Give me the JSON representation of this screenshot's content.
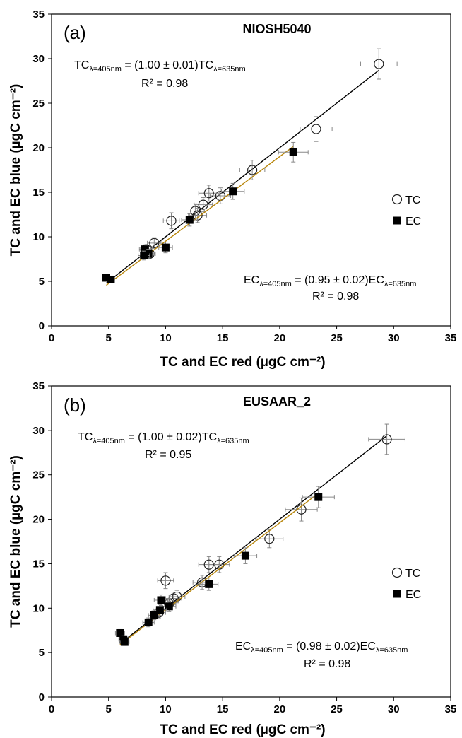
{
  "chart_data": [
    {
      "type": "scatter",
      "panel_label": "(a)",
      "title": "NIOSH5040",
      "xlabel": "TC and EC red (µgC cm⁻²)",
      "ylabel": "TC and EC blue (µgC cm⁻²)",
      "xlim": [
        0,
        35
      ],
      "ylim": [
        0,
        35
      ],
      "xticks": [
        0,
        5,
        10,
        15,
        20,
        25,
        30,
        35
      ],
      "yticks": [
        0,
        5,
        10,
        15,
        20,
        25,
        30,
        35
      ],
      "legend_placement": "right",
      "series": [
        {
          "name": "TC",
          "marker": "open-circle",
          "points": [
            {
              "x": 28.7,
              "y": 29.4,
              "xerr": 1.6,
              "yerr": 1.7
            },
            {
              "x": 23.2,
              "y": 22.1,
              "xerr": 1.4,
              "yerr": 1.4
            },
            {
              "x": 17.6,
              "y": 17.5,
              "xerr": 1.1,
              "yerr": 1.1
            },
            {
              "x": 14.8,
              "y": 14.6,
              "xerr": 0.9,
              "yerr": 0.9
            },
            {
              "x": 13.8,
              "y": 14.9,
              "xerr": 0.9,
              "yerr": 0.9
            },
            {
              "x": 13.3,
              "y": 13.6,
              "xerr": 0.8,
              "yerr": 0.8
            },
            {
              "x": 12.6,
              "y": 12.9,
              "xerr": 0.8,
              "yerr": 0.8
            },
            {
              "x": 12.8,
              "y": 12.4,
              "xerr": 0.8,
              "yerr": 0.8
            },
            {
              "x": 10.5,
              "y": 11.8,
              "xerr": 0.7,
              "yerr": 0.9
            },
            {
              "x": 9.0,
              "y": 9.3,
              "xerr": 0.6,
              "yerr": 0.6
            },
            {
              "x": 8.3,
              "y": 8.6,
              "xerr": 0.5,
              "yerr": 0.5
            },
            {
              "x": 8.6,
              "y": 8.1,
              "xerr": 0.5,
              "yerr": 0.5
            }
          ],
          "fit": {
            "equation_prefix": "TC",
            "sub1": "λ=405nm",
            "middle": " = (1.00 ± 0.01)TC",
            "sub2": "λ=635nm",
            "r2": "R² = 0.98",
            "slope": 1.0,
            "x_range": [
              4.8,
              28.7
            ],
            "color": "#000000"
          }
        },
        {
          "name": "EC",
          "marker": "filled-square",
          "points": [
            {
              "x": 21.2,
              "y": 19.5,
              "xerr": 1.3,
              "yerr": 1.1
            },
            {
              "x": 15.9,
              "y": 15.1,
              "xerr": 1.0,
              "yerr": 0.9
            },
            {
              "x": 12.1,
              "y": 11.9,
              "xerr": 0.7,
              "yerr": 0.7
            },
            {
              "x": 10.0,
              "y": 8.8,
              "xerr": 0.6,
              "yerr": 0.6
            },
            {
              "x": 8.2,
              "y": 8.6,
              "xerr": 0.5,
              "yerr": 0.5
            },
            {
              "x": 8.5,
              "y": 8.1,
              "xerr": 0.5,
              "yerr": 0.5
            },
            {
              "x": 8.1,
              "y": 7.9,
              "xerr": 0.5,
              "yerr": 0.5
            },
            {
              "x": 4.8,
              "y": 5.4,
              "xerr": 0.3,
              "yerr": 0.3
            },
            {
              "x": 5.2,
              "y": 5.2,
              "xerr": 0.3,
              "yerr": 0.3
            }
          ],
          "fit": {
            "equation_prefix": "EC",
            "sub1": "λ=405nm",
            "middle": " = (0.95 ± 0.02)EC",
            "sub2": "λ=635nm",
            "r2": "R² = 0.98",
            "slope": 0.95,
            "x_range": [
              4.8,
              21.2
            ],
            "color": "#b8860b"
          }
        }
      ]
    },
    {
      "type": "scatter",
      "panel_label": "(b)",
      "title": "EUSAAR_2",
      "xlabel": "TC and EC red (µgC cm⁻²)",
      "ylabel": "TC and EC blue (µgC cm⁻²)",
      "xlim": [
        0,
        35
      ],
      "ylim": [
        0,
        35
      ],
      "xticks": [
        0,
        5,
        10,
        15,
        20,
        25,
        30,
        35
      ],
      "yticks": [
        0,
        5,
        10,
        15,
        20,
        25,
        30,
        35
      ],
      "legend_placement": "right",
      "series": [
        {
          "name": "TC",
          "marker": "open-circle",
          "points": [
            {
              "x": 29.4,
              "y": 29.0,
              "xerr": 1.6,
              "yerr": 1.7
            },
            {
              "x": 21.9,
              "y": 21.1,
              "xerr": 1.4,
              "yerr": 1.3
            },
            {
              "x": 19.1,
              "y": 17.8,
              "xerr": 1.2,
              "yerr": 1.0
            },
            {
              "x": 14.7,
              "y": 14.9,
              "xerr": 0.9,
              "yerr": 0.9
            },
            {
              "x": 13.8,
              "y": 14.9,
              "xerr": 0.9,
              "yerr": 0.9
            },
            {
              "x": 13.2,
              "y": 12.9,
              "xerr": 0.8,
              "yerr": 0.8
            },
            {
              "x": 10.0,
              "y": 13.1,
              "xerr": 0.7,
              "yerr": 0.9
            },
            {
              "x": 10.7,
              "y": 11.1,
              "xerr": 0.7,
              "yerr": 0.7
            },
            {
              "x": 11.0,
              "y": 11.3,
              "xerr": 0.7,
              "yerr": 0.7
            },
            {
              "x": 10.3,
              "y": 10.5,
              "xerr": 0.6,
              "yerr": 0.6
            },
            {
              "x": 9.4,
              "y": 9.5,
              "xerr": 0.6,
              "yerr": 0.6
            }
          ],
          "fit": {
            "equation_prefix": "TC",
            "sub1": "λ=405nm",
            "middle": " = (1.00 ± 0.02)TC",
            "sub2": "λ=635nm",
            "r2": "R² = 0.95",
            "slope": 1.0,
            "x_range": [
              6.0,
              29.4
            ],
            "color": "#000000"
          }
        },
        {
          "name": "EC",
          "marker": "filled-square",
          "points": [
            {
              "x": 23.4,
              "y": 22.5,
              "xerr": 1.4,
              "yerr": 1.2
            },
            {
              "x": 17.0,
              "y": 15.9,
              "xerr": 1.0,
              "yerr": 0.9
            },
            {
              "x": 13.8,
              "y": 12.7,
              "xerr": 0.8,
              "yerr": 0.7
            },
            {
              "x": 10.3,
              "y": 10.2,
              "xerr": 0.6,
              "yerr": 0.6
            },
            {
              "x": 9.6,
              "y": 10.9,
              "xerr": 0.6,
              "yerr": 0.6
            },
            {
              "x": 9.5,
              "y": 9.8,
              "xerr": 0.6,
              "yerr": 0.6
            },
            {
              "x": 9.0,
              "y": 9.2,
              "xerr": 0.5,
              "yerr": 0.5
            },
            {
              "x": 8.5,
              "y": 8.4,
              "xerr": 0.5,
              "yerr": 0.5
            },
            {
              "x": 6.0,
              "y": 7.2,
              "xerr": 0.4,
              "yerr": 0.4
            },
            {
              "x": 6.3,
              "y": 6.5,
              "xerr": 0.4,
              "yerr": 0.4
            },
            {
              "x": 6.4,
              "y": 6.2,
              "xerr": 0.4,
              "yerr": 0.4
            }
          ],
          "fit": {
            "equation_prefix": "EC",
            "sub1": "λ=405nm",
            "middle": " = (0.98 ± 0.02)EC",
            "sub2": "λ=635nm",
            "r2": "R² = 0.98",
            "slope": 0.98,
            "x_range": [
              6.0,
              23.4
            ],
            "color": "#b8860b"
          }
        }
      ]
    }
  ]
}
